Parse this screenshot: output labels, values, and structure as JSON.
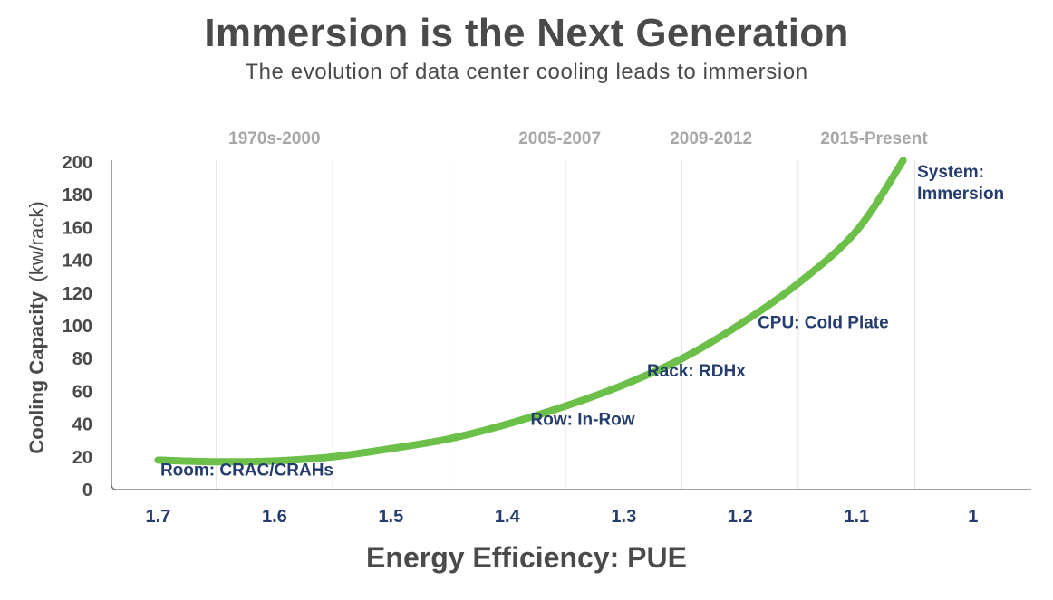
{
  "chart_data": {
    "type": "line",
    "title": "Immersion is the Next Generation",
    "subtitle": "The evolution of data center cooling leads to immersion",
    "xlabel": "Energy Efficiency: PUE",
    "ylabel_bold": "Cooling Capacity",
    "ylabel_unit": "(kw/rack)",
    "x_ticks": [
      "1.7",
      "1.6",
      "1.5",
      "1.4",
      "1.3",
      "1.2",
      "1.1",
      "1"
    ],
    "x_tick_values": [
      1.7,
      1.6,
      1.5,
      1.4,
      1.3,
      1.2,
      1.1,
      1.0
    ],
    "xlim": [
      1.74,
      0.95
    ],
    "y_ticks": [
      "0",
      "20",
      "40",
      "60",
      "80",
      "100",
      "120",
      "140",
      "160",
      "180",
      "200"
    ],
    "ylim": [
      0,
      200
    ],
    "grid": "vertical",
    "line_color": "#6cc04a",
    "series": [
      {
        "x": [
          1.7,
          1.65,
          1.6,
          1.55,
          1.5,
          1.45,
          1.4,
          1.35,
          1.3,
          1.25,
          1.2,
          1.15,
          1.1,
          1.06
        ],
        "y": [
          18,
          17,
          17.5,
          20,
          25,
          31,
          40,
          51,
          64,
          80,
          101,
          126,
          158,
          201
        ]
      }
    ],
    "eras": [
      {
        "label": "1970s-2000",
        "x": 1.6
      },
      {
        "label": "2005-2007",
        "x": 1.355
      },
      {
        "label": "2009-2012",
        "x": 1.225
      },
      {
        "label": "2015-Present",
        "x": 1.085
      }
    ],
    "annotations": [
      {
        "lines": [
          "Room: CRAC/CRAHs"
        ],
        "x": 1.698,
        "y": 8.5
      },
      {
        "lines": [
          "Row: In-Row"
        ],
        "x": 1.38,
        "y": 39.5
      },
      {
        "lines": [
          "Rack: RDHx"
        ],
        "x": 1.28,
        "y": 69
      },
      {
        "lines": [
          "CPU: Cold Plate"
        ],
        "x": 1.185,
        "y": 98.5
      },
      {
        "lines": [
          "System:",
          "Immersion"
        ],
        "x": 1.048,
        "y": 190.5
      }
    ]
  }
}
